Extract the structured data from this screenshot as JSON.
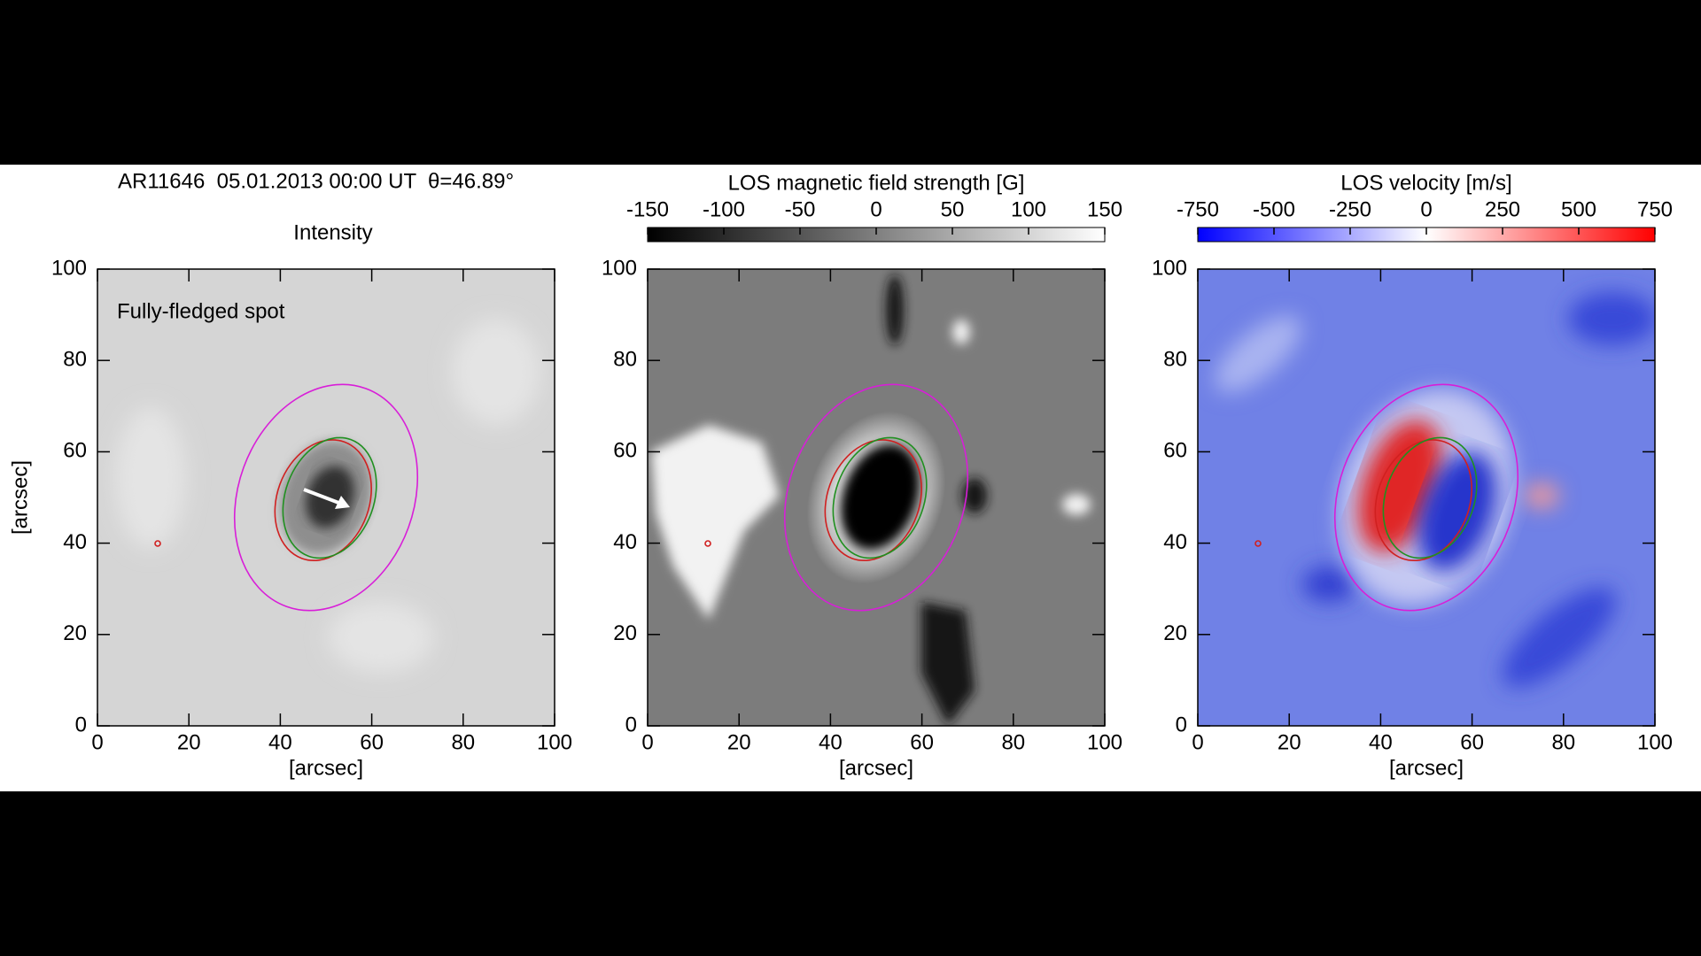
{
  "header": {
    "text": "AR11646  05.01.2013 00:00 UT  θ=46.89°"
  },
  "chart_data": [
    {
      "type": "image",
      "title": "Intensity",
      "annotation": "Fully-fledged spot",
      "xlabel": "[arcsec]",
      "ylabel": "[arcsec]",
      "xlim": [
        0,
        100
      ],
      "ylim": [
        0,
        100
      ],
      "xticks": [
        0,
        20,
        40,
        60,
        80,
        100
      ],
      "yticks": [
        0,
        20,
        40,
        60,
        80,
        100
      ]
    },
    {
      "type": "image",
      "title": "LOS magnetic field strength [G]",
      "xlabel": "[arcsec]",
      "xlim": [
        0,
        100
      ],
      "ylim": [
        0,
        100
      ],
      "xticks": [
        0,
        20,
        40,
        60,
        80,
        100
      ],
      "yticks": [
        0,
        20,
        40,
        60,
        80,
        100
      ],
      "colorbar": {
        "lim": [
          -150,
          150
        ],
        "ticks": [
          -150,
          -100,
          -50,
          0,
          50,
          100,
          150
        ],
        "colors": [
          "#000000",
          "#ffffff"
        ]
      }
    },
    {
      "type": "image",
      "title": "LOS velocity [m/s]",
      "xlabel": "[arcsec]",
      "xlim": [
        0,
        100
      ],
      "ylim": [
        0,
        100
      ],
      "xticks": [
        0,
        20,
        40,
        60,
        80,
        100
      ],
      "yticks": [
        0,
        20,
        40,
        60,
        80,
        100
      ],
      "colorbar": {
        "lim": [
          -750,
          750
        ],
        "ticks": [
          -750,
          -500,
          -250,
          0,
          250,
          500,
          750
        ],
        "colors": [
          "#0000ff",
          "#ffffff",
          "#ff0000"
        ]
      }
    }
  ]
}
